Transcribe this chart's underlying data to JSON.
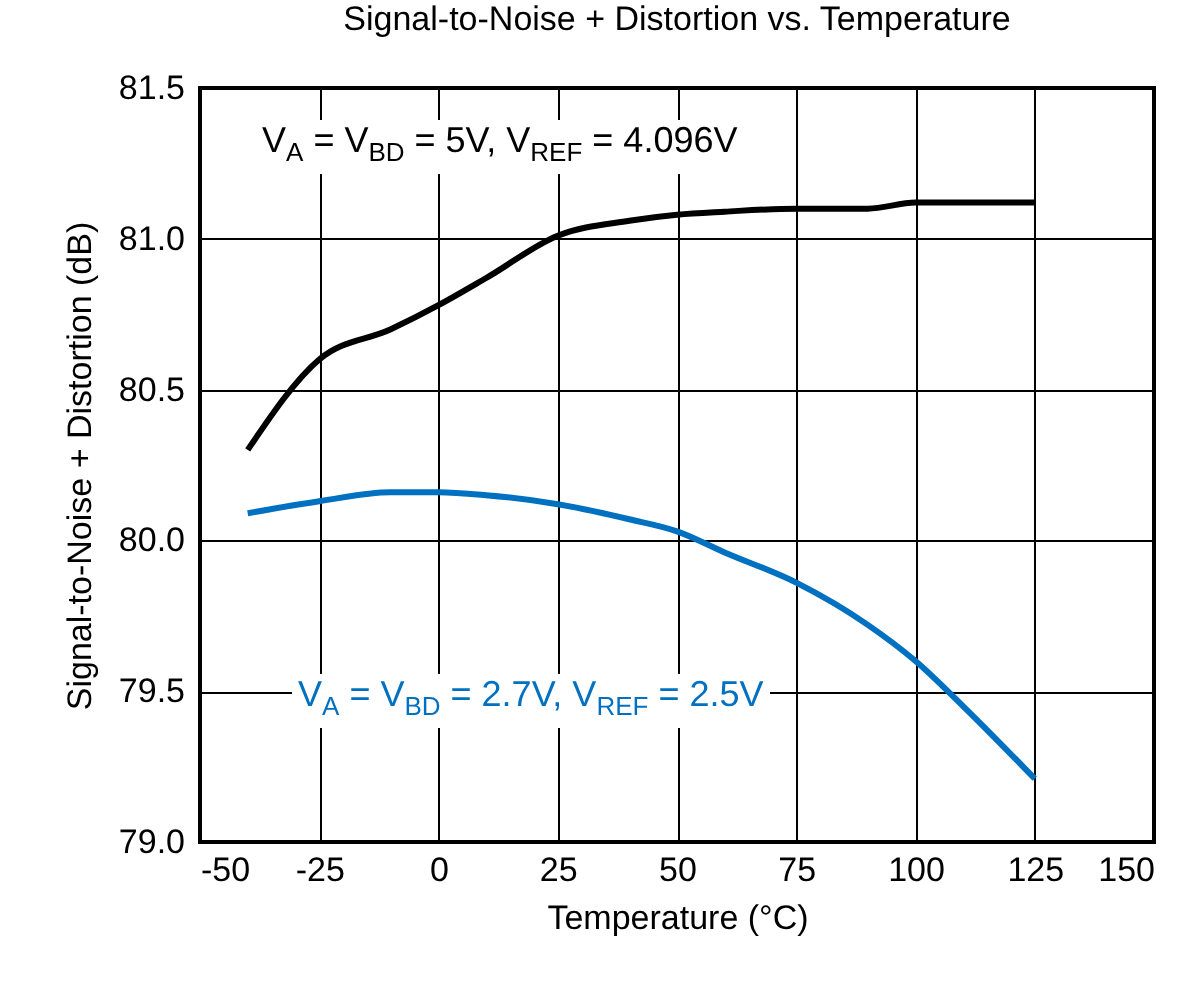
{
  "chart_data": {
    "type": "line",
    "title": "Signal-to-Noise + Distortion vs. Temperature",
    "xlabel": "Temperature (°C)",
    "ylabel": "Signal-to-Noise + Distortion (dB)",
    "x": [
      -40,
      -25,
      -10,
      0,
      10,
      25,
      40,
      50,
      60,
      75,
      90,
      100,
      110,
      125
    ],
    "series": [
      {
        "color": "#000000",
        "values": [
          80.3,
          80.6,
          80.7,
          80.78,
          80.87,
          81.01,
          81.06,
          81.08,
          81.09,
          81.1,
          81.1,
          81.12,
          81.12,
          81.12
        ]
      },
      {
        "color": "#0070c0",
        "values": [
          80.09,
          80.13,
          80.16,
          80.16,
          80.15,
          80.12,
          80.07,
          80.03,
          79.96,
          79.86,
          79.72,
          79.6,
          79.45,
          79.21
        ]
      }
    ],
    "annotations": [
      "V$_{A}$ = V$_{BD}$ = 5V, V$_{REF}$ = 4.096V",
      "V$_{A}$ = V$_{BD}$ = 2.7V, V$_{REF}$ = 2.5V"
    ],
    "xlim": [
      -50,
      150
    ],
    "xticks": [
      -50,
      -25,
      0,
      25,
      50,
      75,
      100,
      125,
      150
    ],
    "ylim": [
      79,
      81.5
    ],
    "yticks": [
      {
        "value": 79,
        "label": "79.0"
      },
      79.5,
      {
        "value": 80,
        "label": "80.0"
      },
      80.5,
      {
        "value": 81,
        "label": "81.0"
      },
      81.5
    ],
    "grid": true,
    "legend": false,
    "marker": "none",
    "line_style": "solid"
  }
}
